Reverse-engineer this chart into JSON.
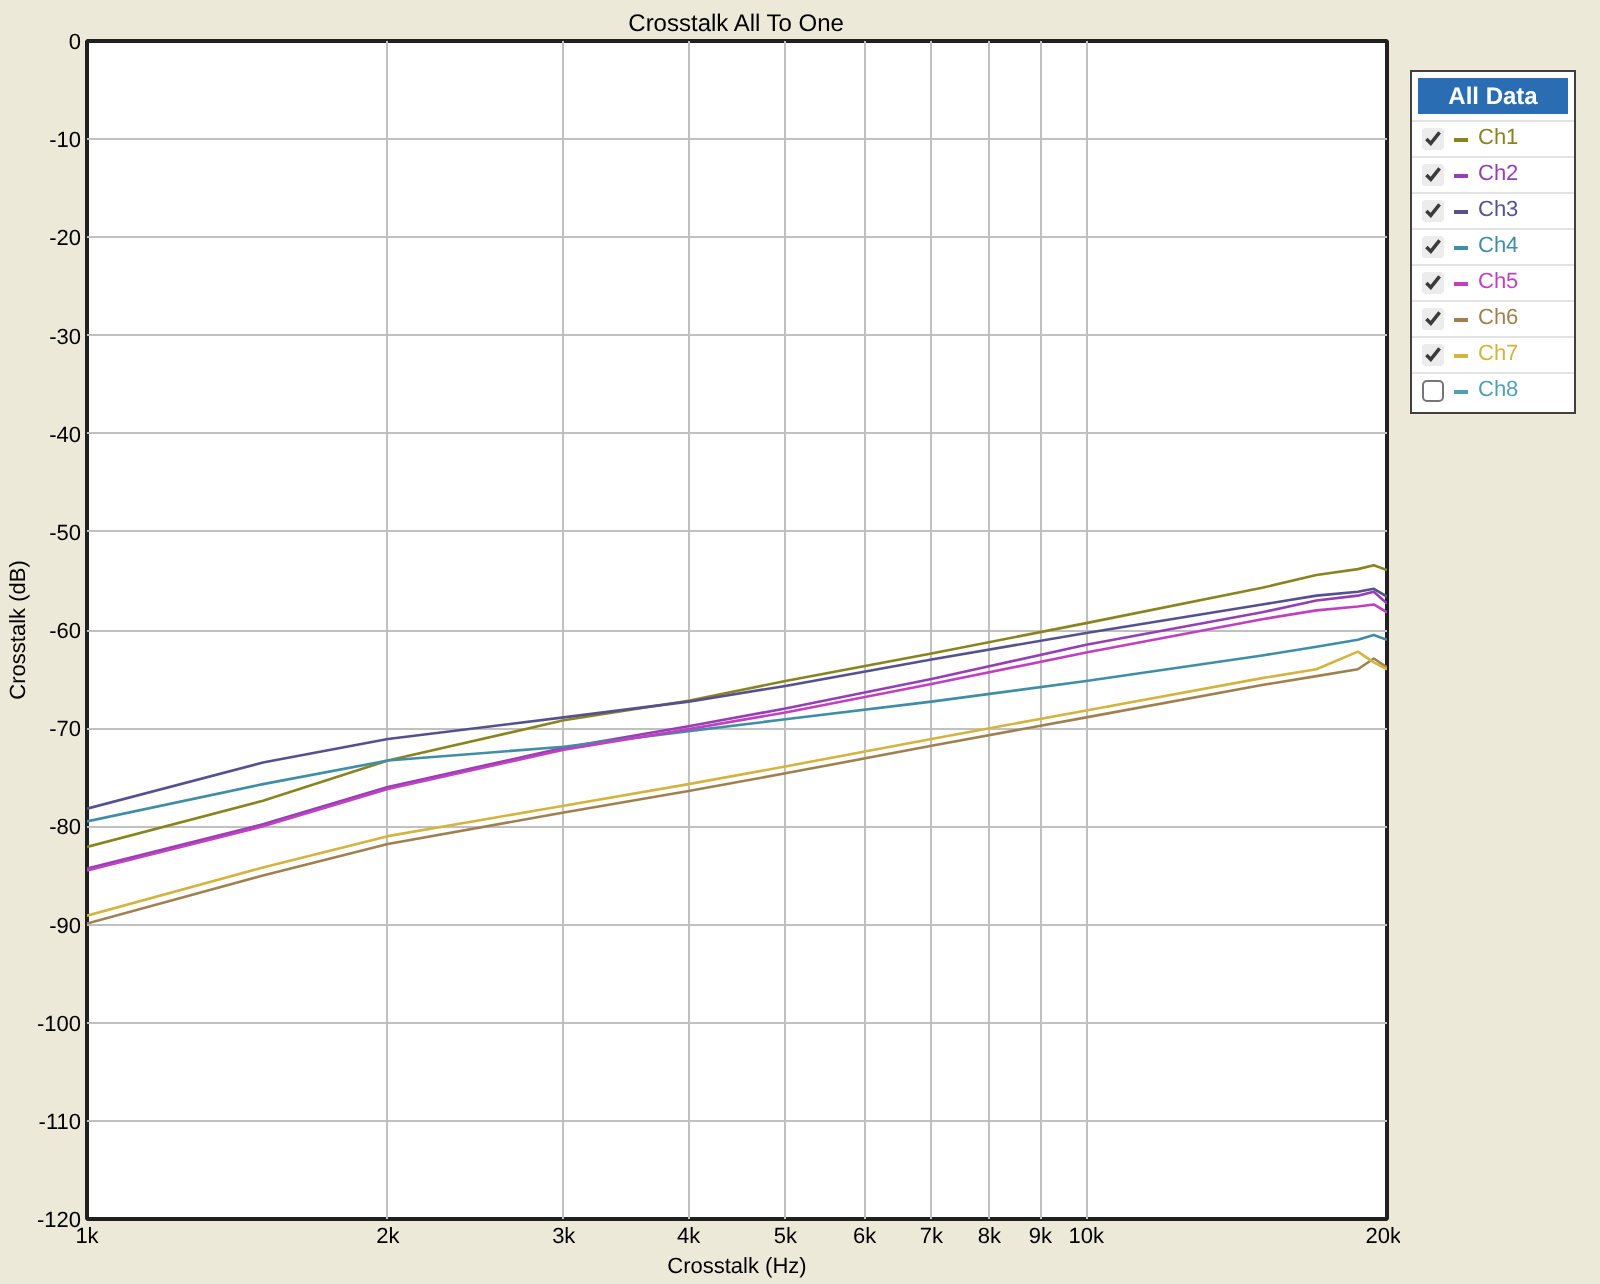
{
  "chart_data": {
    "type": "line",
    "title": "Crosstalk All To One",
    "xlabel": "Crosstalk (Hz)",
    "ylabel": "Crosstalk (dB)",
    "legend_title": "All Data",
    "log": "x",
    "grid": true,
    "legend": "top right",
    "line_style": "solid",
    "xlim": [
      1000,
      20000
    ],
    "ylim": [
      -120,
      0
    ],
    "xticks": [
      {
        "value": 1000,
        "label": "1k"
      },
      {
        "value": 2000,
        "label": "2k"
      },
      {
        "value": 3000,
        "label": "3k"
      },
      {
        "value": 4000,
        "label": "4k"
      },
      {
        "value": 5000,
        "label": "5k"
      },
      {
        "value": 6000,
        "label": "6k"
      },
      {
        "value": 7000,
        "label": "7k"
      },
      {
        "value": 8000,
        "label": "8k"
      },
      {
        "value": 9000,
        "label": "9k"
      },
      {
        "value": 10000,
        "label": "10k"
      },
      {
        "value": 20000,
        "label": "20k"
      }
    ],
    "yticks": [
      0,
      -10,
      -20,
      -30,
      -40,
      -50,
      -60,
      -70,
      -80,
      -90,
      -100,
      -110,
      -120
    ],
    "x": [
      1000,
      1500,
      2000,
      3000,
      4000,
      5000,
      7000,
      10000,
      15000,
      17000,
      18700,
      19400,
      20000
    ],
    "series": [
      {
        "name": "Ch1",
        "color": "#8a8420",
        "values": [
          -82.1,
          -77.4,
          -73.3,
          -69.2,
          -67.2,
          -65.2,
          -62.4,
          -59.3,
          -55.7,
          -54.4,
          -53.8,
          -53.4,
          -53.9
        ]
      },
      {
        "name": "Ch2",
        "color": "#9440b4",
        "values": [
          -84.3,
          -79.8,
          -76.0,
          -72.0,
          -69.8,
          -68.0,
          -65.0,
          -61.5,
          -58.2,
          -57.0,
          -56.5,
          -56.1,
          -57.3
        ]
      },
      {
        "name": "Ch3",
        "color": "#55508f",
        "values": [
          -78.2,
          -73.5,
          -71.1,
          -68.9,
          -67.3,
          -65.7,
          -63.0,
          -60.3,
          -57.4,
          -56.5,
          -56.1,
          -55.8,
          -56.6
        ]
      },
      {
        "name": "Ch4",
        "color": "#3f8ea5",
        "values": [
          -79.5,
          -75.7,
          -73.3,
          -71.9,
          -70.3,
          -69.1,
          -67.3,
          -65.2,
          -62.6,
          -61.7,
          -61.0,
          -60.5,
          -61.0
        ]
      },
      {
        "name": "Ch5",
        "color": "#c040c0",
        "values": [
          -84.5,
          -80.0,
          -76.2,
          -72.2,
          -70.1,
          -68.4,
          -65.5,
          -62.3,
          -58.9,
          -58.0,
          -57.6,
          -57.4,
          -58.2
        ]
      },
      {
        "name": "Ch6",
        "color": "#a08050",
        "values": [
          -89.9,
          -85.0,
          -81.8,
          -78.6,
          -76.4,
          -74.6,
          -71.8,
          -68.9,
          -65.6,
          -64.7,
          -64.0,
          -62.9,
          -63.8
        ]
      },
      {
        "name": "Ch7",
        "color": "#d4b440",
        "values": [
          -89.1,
          -84.2,
          -81.0,
          -77.9,
          -75.7,
          -73.9,
          -71.1,
          -68.2,
          -64.9,
          -64.0,
          -62.2,
          -63.3,
          -64.0
        ]
      },
      {
        "name": "Ch8",
        "color": "#50a0b0",
        "values": [
          null,
          null,
          null,
          null,
          null,
          null,
          null,
          null,
          null,
          null,
          null,
          null,
          null
        ]
      }
    ]
  }
}
